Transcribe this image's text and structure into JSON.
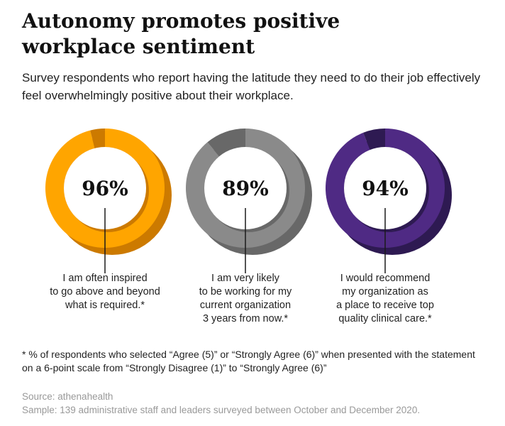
{
  "title_lines": [
    "Autonomy promotes positive",
    "workplace sentiment"
  ],
  "subtitle_lines": [
    "Survey respondents who report having the latitude they need to do their job effectively",
    "feel overwhelmingly positive about their workplace."
  ],
  "chart_data": {
    "type": "pie",
    "variant": "donut",
    "items": [
      {
        "value": 96,
        "value_label": "96%",
        "color": "#FFA500",
        "remainder_color": "#CC7A00",
        "caption_lines": [
          "I am often inspired",
          "to go above and beyond",
          "what is required.*"
        ]
      },
      {
        "value": 89,
        "value_label": "89%",
        "color": "#8A8A8A",
        "remainder_color": "#686868",
        "caption_lines": [
          "I am very likely",
          "to be working for my",
          "current organization",
          "3 years from now.*"
        ]
      },
      {
        "value": 94,
        "value_label": "94%",
        "color": "#4F2A84",
        "remainder_color": "#2E1A52",
        "caption_lines": [
          "I would recommend",
          "my organization as",
          "a place to receive top",
          "quality clinical care.*"
        ]
      }
    ]
  },
  "footnote_lines": [
    "* % of respondents who selected “Agree (5)” or “Strongly Agree (6)” when presented with the statement",
    "on a 6-point scale from “Strongly Disagree (1)” to “Strongly Agree (6)”"
  ],
  "source_lines": [
    "Source: athenahealth",
    "Sample: 139 administrative staff and leaders surveyed between October and December 2020."
  ]
}
